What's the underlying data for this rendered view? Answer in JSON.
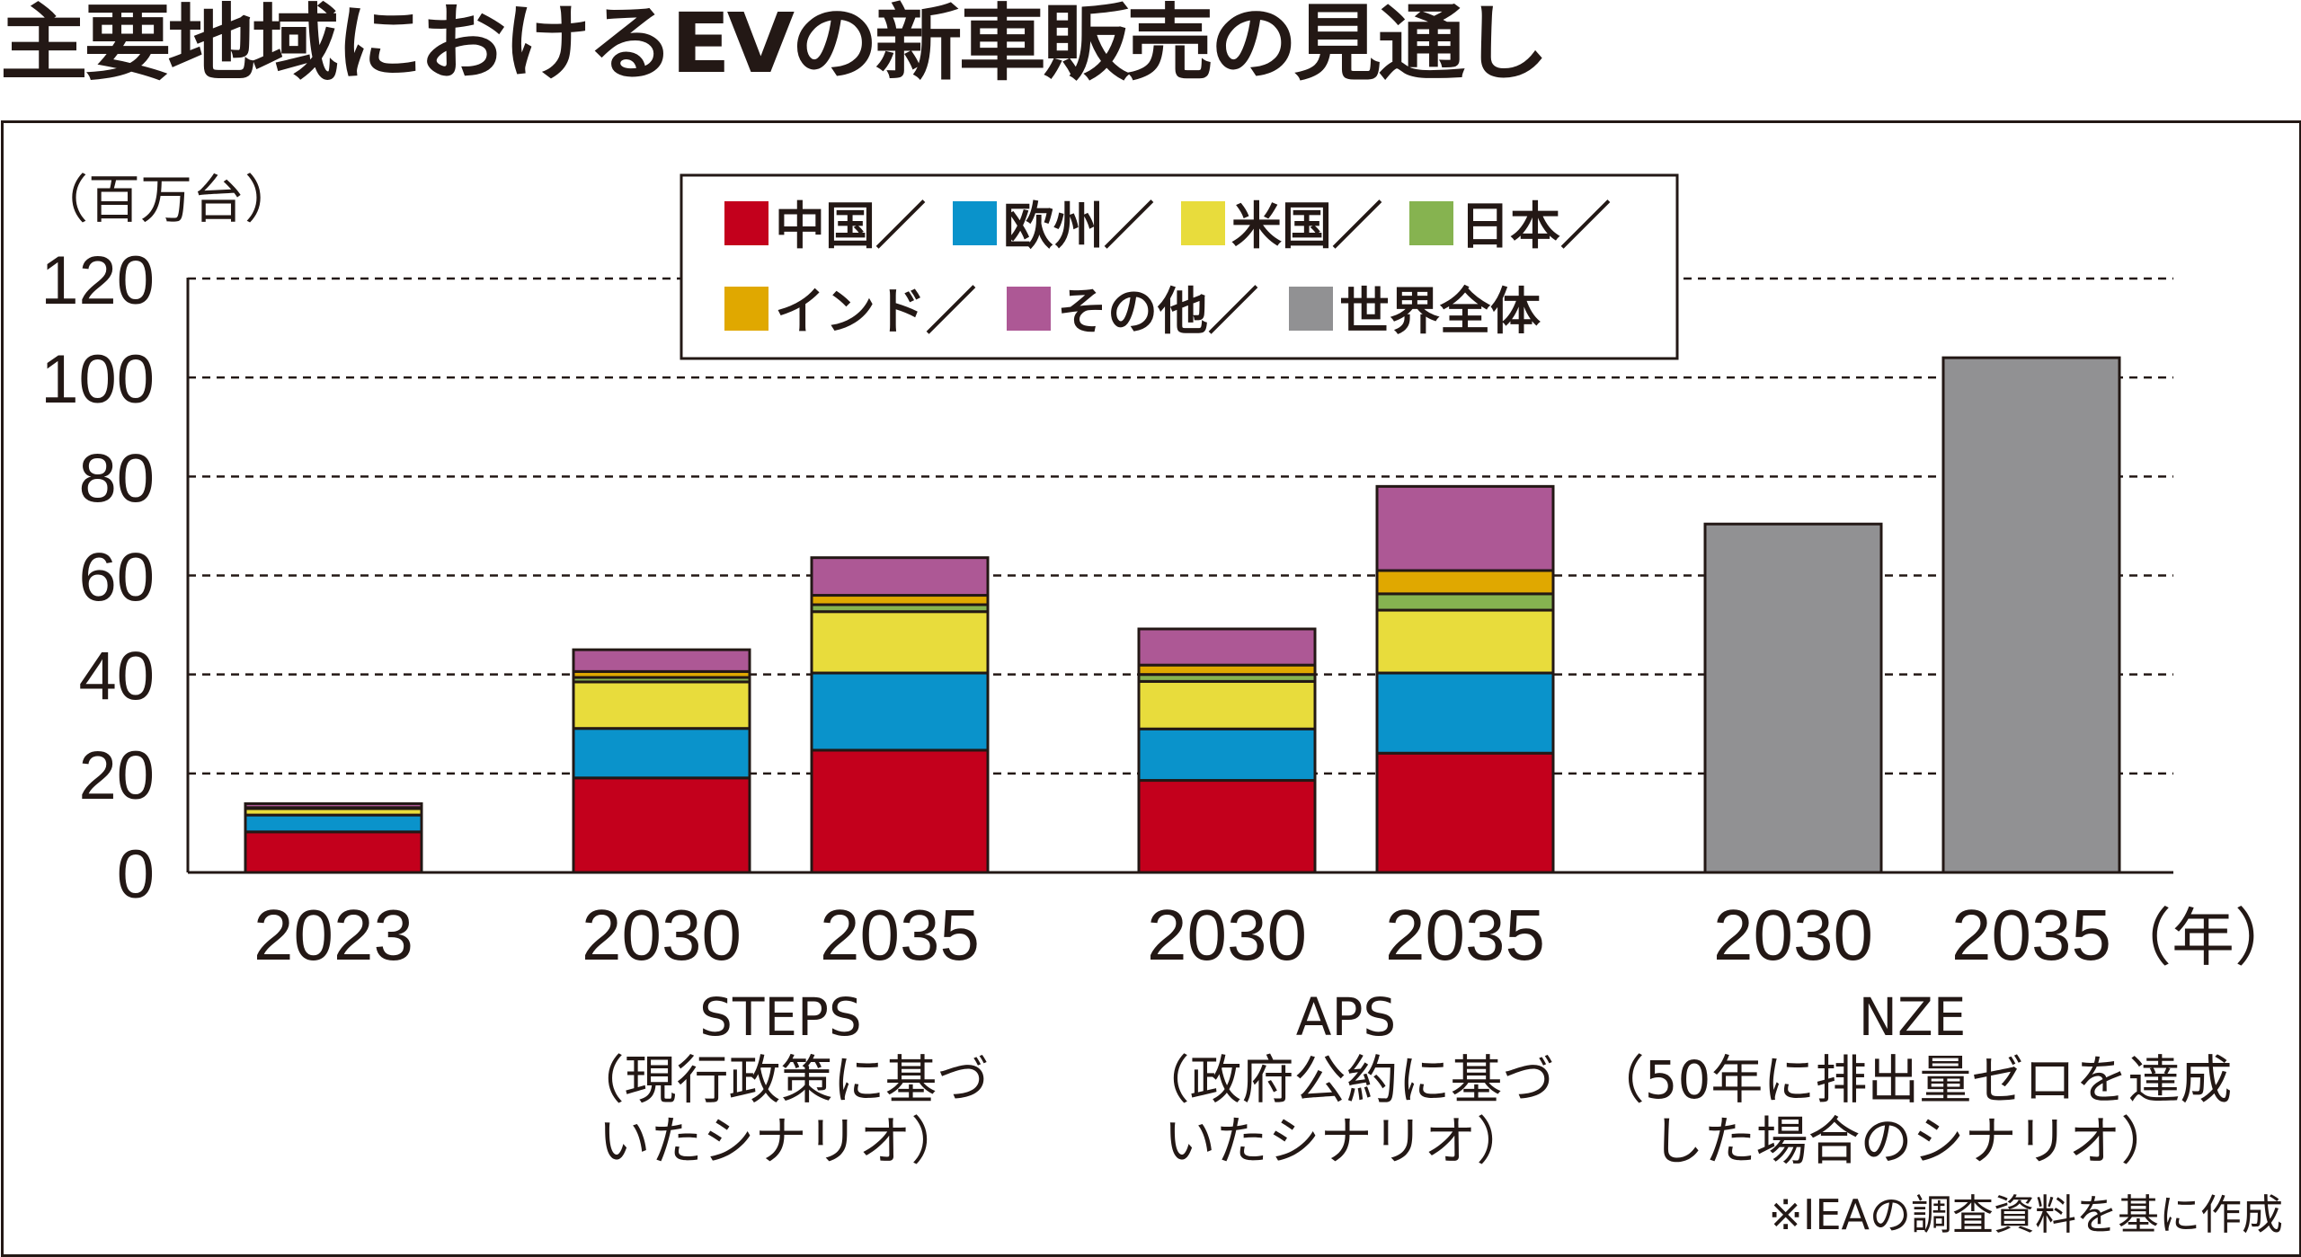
{
  "title": "主要地域におけるEVの新車販売の見通し",
  "source_note": "※IEAの調査資料を基に作成",
  "chart_data": {
    "type": "bar",
    "stacked": true,
    "title": "主要地域におけるEVの新車販売の見通し",
    "ylabel": "（百万台）",
    "xlabel_unit": "（年）",
    "ylim": [
      0,
      120
    ],
    "yticks": [
      0,
      20,
      40,
      60,
      80,
      100,
      120
    ],
    "grid": true,
    "legend_position": "top-center",
    "legend": [
      {
        "name": "中国",
        "color": "#c3001c"
      },
      {
        "name": "欧州",
        "color": "#0a93cb"
      },
      {
        "name": "米国",
        "color": "#e8dc3c"
      },
      {
        "name": "日本",
        "color": "#86b350"
      },
      {
        "name": "インド",
        "color": "#e0a800"
      },
      {
        "name": "その他",
        "color": "#ad5895"
      },
      {
        "name": "世界全体",
        "color": "#919193"
      }
    ],
    "legend_separator": "／",
    "categories": [
      "2023",
      "2030",
      "2035",
      "2030",
      "2035",
      "2030",
      "2035"
    ],
    "groups": [
      {
        "name": "",
        "description": [],
        "members": [
          0
        ]
      },
      {
        "name": "STEPS",
        "description": [
          "（現行政策に基づ",
          "いたシナリオ）"
        ],
        "members": [
          1,
          2
        ]
      },
      {
        "name": "APS",
        "description": [
          "（政府公約に基づ",
          "いたシナリオ）"
        ],
        "members": [
          3,
          4
        ]
      },
      {
        "name": "NZE",
        "description": [
          "（50年に排出量ゼロを達成",
          "した場合のシナリオ）"
        ],
        "members": [
          5,
          6
        ]
      }
    ],
    "series": [
      {
        "name": "中国",
        "values": [
          8.2,
          19.1,
          24.7,
          18.6,
          24.1,
          null,
          null
        ]
      },
      {
        "name": "欧州",
        "values": [
          3.4,
          10.0,
          15.6,
          10.4,
          16.2,
          null,
          null
        ]
      },
      {
        "name": "米国",
        "values": [
          1.3,
          9.4,
          12.4,
          9.6,
          12.7,
          null,
          null
        ]
      },
      {
        "name": "日本",
        "values": [
          0.1,
          0.9,
          1.4,
          1.4,
          3.3,
          null,
          null
        ]
      },
      {
        "name": "インド",
        "values": [
          0.1,
          1.2,
          1.9,
          1.9,
          4.7,
          null,
          null
        ]
      },
      {
        "name": "その他",
        "values": [
          0.8,
          4.4,
          7.6,
          7.3,
          17.0,
          null,
          null
        ]
      },
      {
        "name": "世界全体",
        "values": [
          null,
          null,
          null,
          null,
          null,
          70.4,
          104.0
        ]
      }
    ]
  }
}
